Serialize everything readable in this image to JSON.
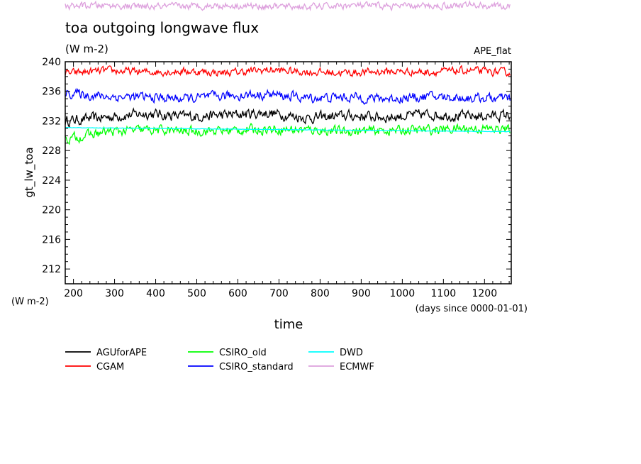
{
  "chart_data": {
    "type": "line",
    "title": "toa outgoing longwave flux",
    "subtitle": "(W m-2)",
    "annotation": "APE_flat",
    "xlabel": "time",
    "xlabel_units": "(days since 0000-01-01)",
    "ylabel": "gt_lw_toa",
    "ylabel_units": "(W m-2)",
    "xlim": [
      180,
      1265
    ],
    "ylim": [
      210,
      240
    ],
    "xticks": [
      200,
      300,
      400,
      500,
      600,
      700,
      800,
      900,
      1000,
      1100,
      1200
    ],
    "yticks": [
      212,
      216,
      220,
      224,
      228,
      232,
      236,
      240
    ],
    "grid": false,
    "legend_position": "bottom-left",
    "series": [
      {
        "name": "AGUforAPE",
        "color": "#000000",
        "x_range": [
          180,
          1262
        ],
        "mean": 232.6,
        "amplitude": 1.1,
        "note_values": [
          232.0,
          232.5,
          233.0,
          232.6,
          232.8,
          233.1,
          232.4,
          232.7,
          232.5,
          232.9,
          232.6,
          232.8
        ]
      },
      {
        "name": "CGAM",
        "color": "#ff0000",
        "x_range": [
          180,
          1262
        ],
        "mean": 238.6,
        "amplitude": 0.8,
        "note_values": [
          238.4,
          238.8,
          238.6,
          238.7,
          238.5,
          238.9,
          238.6,
          238.5,
          238.7,
          238.6,
          238.8,
          238.5
        ]
      },
      {
        "name": "CSIRO_old",
        "color": "#00ff00",
        "x_range": [
          180,
          1262
        ],
        "mean": 230.6,
        "amplitude": 1.0,
        "note_values": [
          229.5,
          230.5,
          230.8,
          230.6,
          230.7,
          230.9,
          230.8,
          230.6,
          230.7,
          230.8,
          231.0,
          230.8
        ]
      },
      {
        "name": "CSIRO_standard",
        "color": "#0000ff",
        "x_range": [
          180,
          1262
        ],
        "mean": 235.2,
        "amplitude": 1.0,
        "note_values": [
          235.8,
          235.3,
          235.2,
          235.0,
          235.4,
          235.6,
          235.1,
          235.2,
          235.0,
          235.3,
          235.1,
          235.0
        ]
      },
      {
        "name": "DWD",
        "color": "#00ffff",
        "x_range": [
          180,
          1262
        ],
        "mean": 230.8,
        "amplitude": 0.05,
        "note_values": [
          231.1,
          231.05,
          231.0,
          230.95,
          230.9,
          230.85,
          230.8,
          230.75,
          230.7,
          230.65,
          230.6,
          230.55
        ]
      },
      {
        "name": "ECMWF",
        "color": "#dda0dd",
        "x_range": [
          180,
          1262
        ],
        "mean": 247.5,
        "amplitude": 0.7,
        "note_values": [
          247.5,
          247.6,
          247.4,
          247.5,
          247.6,
          247.5,
          247.4,
          247.6,
          247.5,
          247.5,
          247.7,
          247.4
        ]
      }
    ]
  }
}
